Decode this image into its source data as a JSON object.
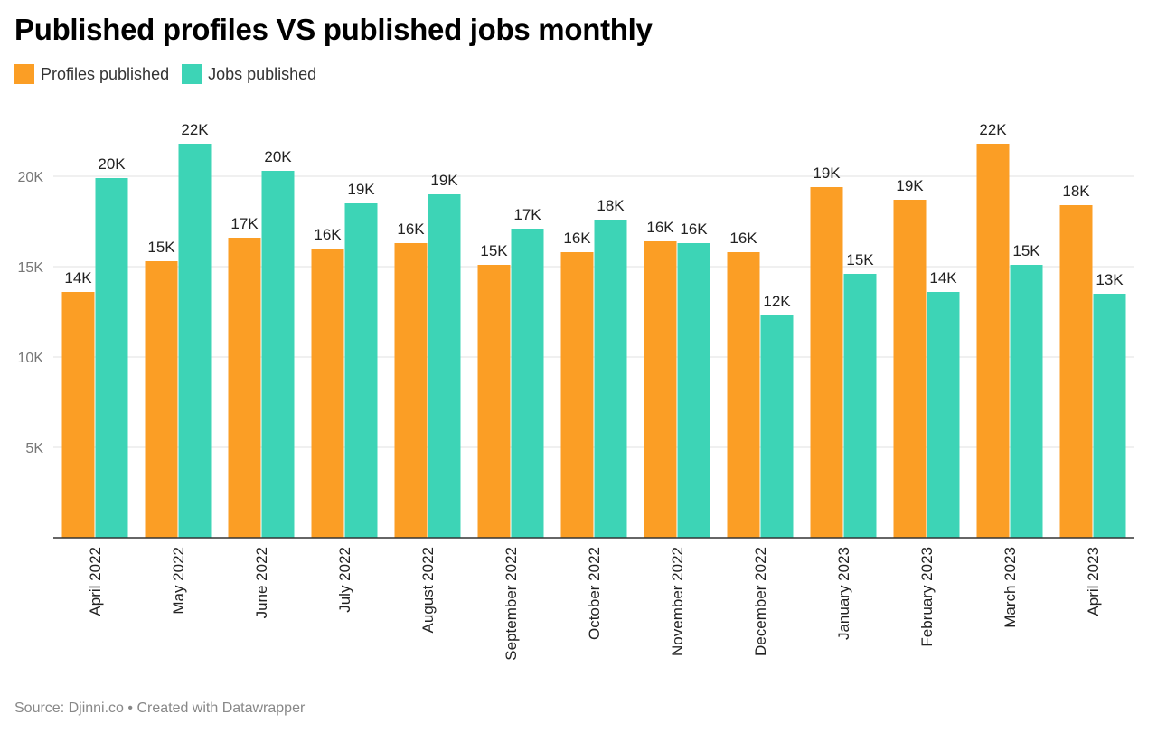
{
  "title": "Published profiles VS published jobs monthly",
  "footer": "Source: Djinni.co • Created with Datawrapper",
  "colors": {
    "profiles": "#fb9e25",
    "jobs": "#3dd4b6",
    "grid": "#e2e2e2",
    "axis": "#333333"
  },
  "legend": {
    "profiles_label": "Profiles published",
    "jobs_label": "Jobs published"
  },
  "chart_data": {
    "type": "bar",
    "categories": [
      "April 2022",
      "May 2022",
      "June 2022",
      "July 2022",
      "August 2022",
      "September 2022",
      "October 2022",
      "November 2022",
      "December 2022",
      "January 2023",
      "February 2023",
      "March 2023",
      "April 2023"
    ],
    "series": [
      {
        "name": "Profiles published",
        "values": [
          13600,
          15300,
          16600,
          16000,
          16300,
          15100,
          15800,
          16400,
          15800,
          19400,
          18700,
          21800,
          18400
        ],
        "labels": [
          "14K",
          "15K",
          "17K",
          "16K",
          "16K",
          "15K",
          "16K",
          "16K",
          "16K",
          "19K",
          "19K",
          "22K",
          "18K"
        ]
      },
      {
        "name": "Jobs published",
        "values": [
          19900,
          21800,
          20300,
          18500,
          19000,
          17100,
          17600,
          16300,
          12300,
          14600,
          13600,
          15100,
          13500
        ],
        "labels": [
          "20K",
          "22K",
          "20K",
          "19K",
          "19K",
          "17K",
          "18K",
          "16K",
          "12K",
          "15K",
          "14K",
          "15K",
          "13K"
        ]
      }
    ],
    "yticks": [
      5000,
      10000,
      15000,
      20000
    ],
    "ytick_labels": [
      "5K",
      "10K",
      "15K",
      "20K"
    ],
    "ylim": [
      0,
      22000
    ],
    "grid": true,
    "legend_position": "top-left"
  }
}
